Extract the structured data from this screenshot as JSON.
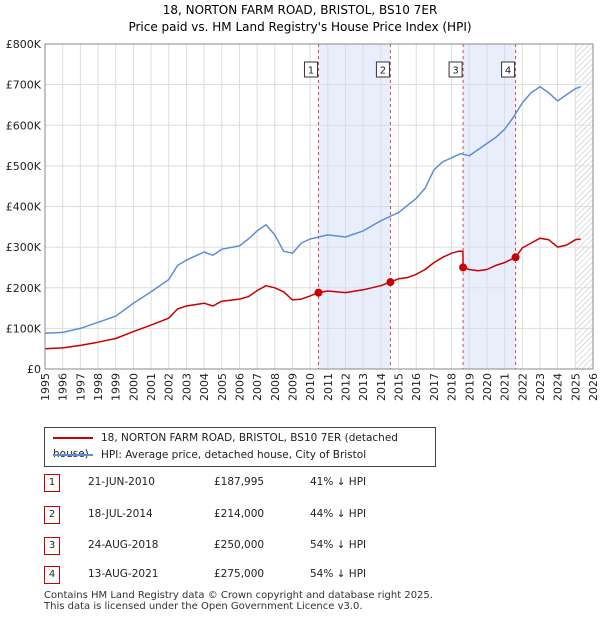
{
  "chart_data": {
    "type": "line",
    "title": "18, NORTON FARM ROAD, BRISTOL, BS10 7ER",
    "subtitle": "Price paid vs. HM Land Registry's House Price Index (HPI)",
    "xlim": [
      1995,
      2026
    ],
    "ylim": [
      0,
      800000
    ],
    "y_ticks": [
      0,
      100000,
      200000,
      300000,
      400000,
      500000,
      600000,
      700000,
      800000
    ],
    "y_tick_labels": [
      "£0",
      "£100K",
      "£200K",
      "£300K",
      "£400K",
      "£500K",
      "£600K",
      "£700K",
      "£800K"
    ],
    "x_ticks": [
      1995,
      1996,
      1997,
      1998,
      1999,
      2000,
      2001,
      2002,
      2003,
      2004,
      2005,
      2006,
      2007,
      2008,
      2009,
      2010,
      2011,
      2012,
      2013,
      2014,
      2015,
      2016,
      2017,
      2018,
      2019,
      2020,
      2021,
      2022,
      2023,
      2024,
      2025,
      2026
    ],
    "grid": true,
    "shaded_ranges": [
      [
        2010.47,
        2014.54
      ],
      [
        2018.65,
        2021.62
      ]
    ],
    "hatched_from": 2025.0,
    "series": [
      {
        "name": "18, NORTON FARM ROAD, BRISTOL, BS10 7ER (detached house)",
        "color": "#cc0000",
        "x": [
          1995.0,
          1996.0,
          1997.0,
          1998.0,
          1999.0,
          2000.0,
          2001.0,
          2002.0,
          2002.5,
          2003.0,
          2004.0,
          2004.5,
          2005.0,
          2006.0,
          2006.5,
          2007.0,
          2007.5,
          2008.0,
          2008.5,
          2009.0,
          2009.5,
          2010.0,
          2010.47,
          2011.0,
          2012.0,
          2013.0,
          2014.0,
          2014.54,
          2015.0,
          2015.5,
          2016.0,
          2016.5,
          2017.0,
          2017.5,
          2018.0,
          2018.4,
          2018.64,
          2018.65,
          2019.0,
          2019.5,
          2020.0,
          2020.5,
          2021.0,
          2021.62,
          2022.0,
          2022.5,
          2023.0,
          2023.5,
          2024.0,
          2024.5,
          2025.0,
          2025.3
        ],
        "y": [
          50000,
          52000,
          58000,
          66000,
          75000,
          92000,
          108000,
          125000,
          148000,
          155000,
          162000,
          155000,
          167000,
          172000,
          178000,
          193000,
          205000,
          200000,
          190000,
          170000,
          172000,
          180000,
          187995,
          192000,
          188000,
          195000,
          205000,
          214000,
          222000,
          225000,
          233000,
          245000,
          262000,
          275000,
          285000,
          290000,
          290000,
          250000,
          245000,
          242000,
          245000,
          255000,
          262000,
          275000,
          298000,
          310000,
          322000,
          318000,
          300000,
          305000,
          318000,
          320000
        ]
      },
      {
        "name": "HPI: Average price, detached house, City of Bristol",
        "color": "#5b8fd6",
        "x": [
          1995.0,
          1996.0,
          1997.0,
          1998.0,
          1999.0,
          2000.0,
          2001.0,
          2002.0,
          2002.5,
          2003.0,
          2004.0,
          2004.5,
          2005.0,
          2006.0,
          2006.5,
          2007.0,
          2007.5,
          2008.0,
          2008.5,
          2009.0,
          2009.5,
          2010.0,
          2011.0,
          2012.0,
          2013.0,
          2014.0,
          2015.0,
          2016.0,
          2016.5,
          2017.0,
          2017.5,
          2018.0,
          2018.5,
          2019.0,
          2019.5,
          2020.0,
          2020.5,
          2021.0,
          2021.5,
          2022.0,
          2022.5,
          2023.0,
          2023.5,
          2024.0,
          2024.5,
          2025.0,
          2025.3
        ],
        "y": [
          88000,
          90000,
          100000,
          115000,
          130000,
          162000,
          190000,
          220000,
          255000,
          268000,
          288000,
          280000,
          295000,
          303000,
          320000,
          340000,
          355000,
          330000,
          290000,
          285000,
          310000,
          320000,
          330000,
          325000,
          340000,
          365000,
          385000,
          420000,
          445000,
          490000,
          510000,
          520000,
          530000,
          525000,
          540000,
          555000,
          570000,
          590000,
          620000,
          655000,
          680000,
          695000,
          680000,
          660000,
          675000,
          690000,
          695000
        ]
      }
    ],
    "annotations": [
      {
        "label": "1",
        "x": 2010.47,
        "y": 187995
      },
      {
        "label": "2",
        "x": 2014.54,
        "y": 214000
      },
      {
        "label": "3",
        "x": 2018.65,
        "y": 250000
      },
      {
        "label": "4",
        "x": 2021.62,
        "y": 275000
      }
    ]
  },
  "legend": {
    "property_label": "18, NORTON FARM ROAD, BRISTOL, BS10 7ER (detached house)",
    "hpi_label": "HPI: Average price, detached house, City of Bristol"
  },
  "sales": [
    {
      "num": "1",
      "date": "21-JUN-2010",
      "price": "£187,995",
      "hpi": "41% ↓ HPI"
    },
    {
      "num": "2",
      "date": "18-JUL-2014",
      "price": "£214,000",
      "hpi": "44% ↓ HPI"
    },
    {
      "num": "3",
      "date": "24-AUG-2018",
      "price": "£250,000",
      "hpi": "54% ↓ HPI"
    },
    {
      "num": "4",
      "date": "13-AUG-2021",
      "price": "£275,000",
      "hpi": "54% ↓ HPI"
    }
  ],
  "footer": {
    "line1": "Contains HM Land Registry data © Crown copyright and database right 2025.",
    "line2": "This data is licensed under the Open Government Licence v3.0."
  },
  "colors": {
    "property": "#cc0000",
    "hpi": "#5b8fd6",
    "shade": "#e8eefb"
  }
}
